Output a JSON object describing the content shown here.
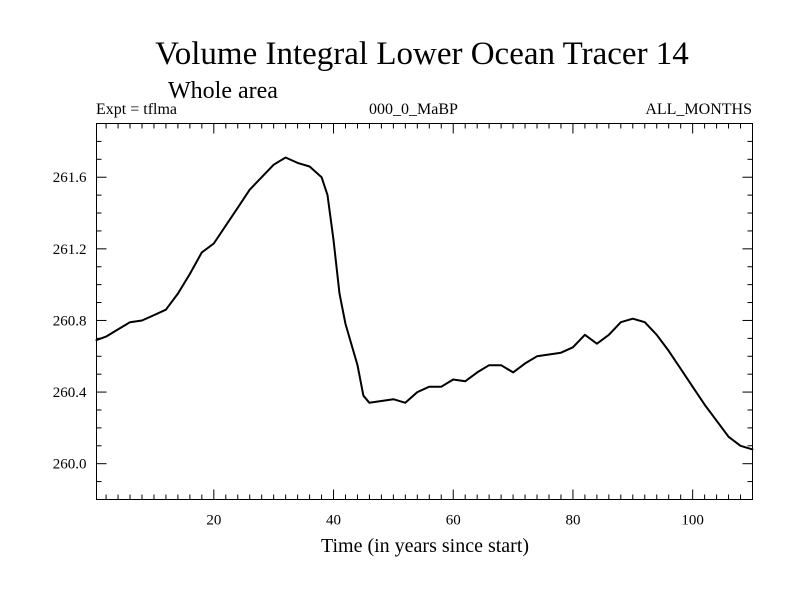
{
  "chart_data": {
    "type": "line",
    "title": "Volume Integral Lower Ocean Tracer 14",
    "subtitle": "Whole area",
    "header_left": "Expt = tflma",
    "header_center": "000_0_MaBP",
    "header_right": "ALL_MONTHS",
    "xlabel": "Time (in years since start)",
    "ylabel": "",
    "xlim": [
      0.4,
      110
    ],
    "ylim": [
      259.8,
      261.9
    ],
    "x_ticks": [
      20,
      40,
      60,
      80,
      100
    ],
    "x_tick_labels": [
      "20",
      "40",
      "60",
      "80",
      "100"
    ],
    "y_ticks": [
      260.0,
      260.4,
      260.8,
      261.2,
      261.6
    ],
    "y_tick_labels": [
      "260.0",
      "260.4",
      "260.8",
      "261.2",
      "261.6"
    ],
    "series": [
      {
        "name": "Volume Integral Lower Ocean Tracer 14",
        "color": "#000000",
        "x": [
          0.4,
          2,
          4,
          6,
          8,
          10,
          12,
          14,
          16,
          18,
          20,
          22,
          24,
          26,
          28,
          30,
          32,
          34,
          36,
          38,
          39,
          40,
          41,
          42,
          44,
          45,
          46,
          48,
          50,
          52,
          54,
          56,
          58,
          60,
          62,
          64,
          66,
          68,
          70,
          72,
          74,
          76,
          78,
          80,
          82,
          84,
          86,
          88,
          90,
          92,
          94,
          96,
          98,
          100,
          102,
          104,
          106,
          108,
          110
        ],
        "values": [
          260.69,
          260.71,
          260.75,
          260.79,
          260.8,
          260.83,
          260.86,
          260.95,
          261.06,
          261.18,
          261.23,
          261.33,
          261.43,
          261.53,
          261.6,
          261.67,
          261.71,
          261.68,
          261.66,
          261.6,
          261.5,
          261.25,
          260.95,
          260.78,
          260.55,
          260.38,
          260.34,
          260.35,
          260.36,
          260.34,
          260.4,
          260.43,
          260.43,
          260.47,
          260.46,
          260.51,
          260.55,
          260.55,
          260.51,
          260.56,
          260.6,
          260.61,
          260.62,
          260.65,
          260.72,
          260.67,
          260.72,
          260.79,
          260.81,
          260.79,
          260.72,
          260.63,
          260.53,
          260.43,
          260.33,
          260.24,
          260.15,
          260.1,
          260.08
        ]
      }
    ]
  }
}
